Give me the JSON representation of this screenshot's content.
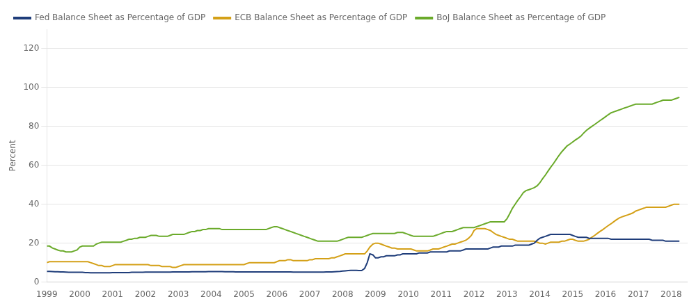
{
  "chart_data": {
    "type": "line",
    "ylabel": "Percent",
    "xlim": [
      1999,
      2018.5
    ],
    "xticks": [
      1999,
      2000,
      2001,
      2002,
      2003,
      2004,
      2005,
      2006,
      2007,
      2008,
      2009,
      2010,
      2011,
      2012,
      2013,
      2014,
      2015,
      2016,
      2017,
      2018
    ],
    "ylim": [
      0,
      130
    ],
    "yticks": [
      0,
      20,
      40,
      60,
      80,
      100,
      120
    ],
    "grid": "y",
    "legend": "upper left",
    "x": [
      1999.0,
      1999.08,
      1999.17,
      1999.25,
      1999.33,
      1999.42,
      1999.5,
      1999.58,
      1999.67,
      1999.75,
      1999.83,
      1999.92,
      2000.0,
      2000.08,
      2000.17,
      2000.25,
      2000.33,
      2000.42,
      2000.5,
      2000.58,
      2000.67,
      2000.75,
      2000.83,
      2000.92,
      2001.0,
      2001.08,
      2001.17,
      2001.25,
      2001.33,
      2001.42,
      2001.5,
      2001.58,
      2001.67,
      2001.75,
      2001.83,
      2001.92,
      2002.0,
      2002.08,
      2002.17,
      2002.25,
      2002.33,
      2002.42,
      2002.5,
      2002.58,
      2002.67,
      2002.75,
      2002.83,
      2002.92,
      2003.0,
      2003.08,
      2003.17,
      2003.25,
      2003.33,
      2003.42,
      2003.5,
      2003.58,
      2003.67,
      2003.75,
      2003.83,
      2003.92,
      2004.0,
      2004.08,
      2004.17,
      2004.25,
      2004.33,
      2004.42,
      2004.5,
      2004.58,
      2004.67,
      2004.75,
      2004.83,
      2004.92,
      2005.0,
      2005.08,
      2005.17,
      2005.25,
      2005.33,
      2005.42,
      2005.5,
      2005.58,
      2005.67,
      2005.75,
      2005.83,
      2005.92,
      2006.0,
      2006.08,
      2006.17,
      2006.25,
      2006.33,
      2006.42,
      2006.5,
      2006.58,
      2006.67,
      2006.75,
      2006.83,
      2006.92,
      2007.0,
      2007.08,
      2007.17,
      2007.25,
      2007.33,
      2007.42,
      2007.5,
      2007.58,
      2007.67,
      2007.75,
      2007.83,
      2007.92,
      2008.0,
      2008.08,
      2008.17,
      2008.25,
      2008.33,
      2008.42,
      2008.5,
      2008.58,
      2008.67,
      2008.75,
      2008.83,
      2008.92,
      2009.0,
      2009.08,
      2009.17,
      2009.25,
      2009.33,
      2009.42,
      2009.5,
      2009.58,
      2009.67,
      2009.75,
      2009.83,
      2009.92,
      2010.0,
      2010.08,
      2010.17,
      2010.25,
      2010.33,
      2010.42,
      2010.5,
      2010.58,
      2010.67,
      2010.75,
      2010.83,
      2010.92,
      2011.0,
      2011.08,
      2011.17,
      2011.25,
      2011.33,
      2011.42,
      2011.5,
      2011.58,
      2011.67,
      2011.75,
      2011.83,
      2011.92,
      2012.0,
      2012.08,
      2012.17,
      2012.25,
      2012.33,
      2012.42,
      2012.5,
      2012.58,
      2012.67,
      2012.75,
      2012.83,
      2012.92,
      2013.0,
      2013.08,
      2013.17,
      2013.25,
      2013.33,
      2013.42,
      2013.5,
      2013.58,
      2013.67,
      2013.75,
      2013.83,
      2013.92,
      2014.0,
      2014.08,
      2014.17,
      2014.25,
      2014.33,
      2014.42,
      2014.5,
      2014.58,
      2014.67,
      2014.75,
      2014.83,
      2014.92,
      2015.0,
      2015.08,
      2015.17,
      2015.25,
      2015.33,
      2015.42,
      2015.5,
      2015.58,
      2015.67,
      2015.75,
      2015.83,
      2015.92,
      2016.0,
      2016.08,
      2016.17,
      2016.25,
      2016.33,
      2016.42,
      2016.5,
      2016.58,
      2016.67,
      2016.75,
      2016.83,
      2016.92,
      2017.0,
      2017.08,
      2017.17,
      2017.25,
      2017.33,
      2017.42,
      2017.5,
      2017.58,
      2017.67,
      2017.75,
      2017.83,
      2017.92,
      2018.0,
      2018.08,
      2018.17,
      2018.25
    ],
    "series": [
      {
        "name": "Fed Balance Sheet as Percentage of GDP",
        "color": "#1f3d7a",
        "values": [
          5.5,
          5.5,
          5.4,
          5.3,
          5.3,
          5.2,
          5.2,
          5.1,
          5.0,
          5.0,
          5.0,
          5.0,
          5.0,
          5.0,
          4.9,
          4.9,
          4.8,
          4.8,
          4.8,
          4.8,
          4.8,
          4.8,
          4.8,
          4.8,
          4.9,
          4.9,
          4.9,
          4.9,
          4.9,
          4.9,
          4.9,
          5.0,
          5.0,
          5.0,
          5.0,
          5.0,
          5.1,
          5.1,
          5.1,
          5.1,
          5.1,
          5.1,
          5.1,
          5.1,
          5.1,
          5.1,
          5.2,
          5.2,
          5.2,
          5.2,
          5.2,
          5.2,
          5.2,
          5.3,
          5.3,
          5.3,
          5.3,
          5.3,
          5.3,
          5.4,
          5.4,
          5.4,
          5.4,
          5.4,
          5.4,
          5.3,
          5.3,
          5.3,
          5.3,
          5.2,
          5.2,
          5.2,
          5.2,
          5.2,
          5.2,
          5.2,
          5.2,
          5.2,
          5.2,
          5.2,
          5.2,
          5.2,
          5.2,
          5.2,
          5.2,
          5.2,
          5.2,
          5.2,
          5.2,
          5.2,
          5.1,
          5.1,
          5.1,
          5.1,
          5.1,
          5.1,
          5.1,
          5.1,
          5.1,
          5.1,
          5.1,
          5.1,
          5.2,
          5.2,
          5.2,
          5.3,
          5.4,
          5.5,
          5.7,
          5.8,
          5.9,
          6.0,
          6.0,
          6.0,
          5.9,
          5.9,
          7.0,
          10.0,
          14.5,
          14.0,
          12.5,
          12.5,
          13.0,
          13.0,
          13.5,
          13.5,
          13.5,
          13.5,
          14.0,
          14.0,
          14.5,
          14.5,
          14.5,
          14.5,
          14.5,
          14.5,
          15.0,
          15.0,
          15.0,
          15.0,
          15.5,
          15.5,
          15.5,
          15.5,
          15.5,
          15.5,
          15.5,
          16.0,
          16.0,
          16.0,
          16.0,
          16.0,
          16.5,
          17.0,
          17.0,
          17.0,
          17.0,
          17.0,
          17.0,
          17.0,
          17.0,
          17.0,
          17.5,
          18.0,
          18.0,
          18.0,
          18.5,
          18.5,
          18.5,
          18.5,
          18.5,
          19.0,
          19.0,
          19.0,
          19.0,
          19.0,
          19.0,
          19.5,
          20.0,
          21.5,
          22.5,
          23.0,
          23.5,
          24.0,
          24.5,
          24.5,
          24.5,
          24.5,
          24.5,
          24.5,
          24.5,
          24.5,
          24.0,
          23.5,
          23.0,
          23.0,
          23.0,
          23.0,
          22.5,
          22.5,
          22.5,
          22.5,
          22.5,
          22.5,
          22.5,
          22.5,
          22.0,
          22.0,
          22.0,
          22.0,
          22.0,
          22.0,
          22.0,
          22.0,
          22.0,
          22.0,
          22.0,
          22.0,
          22.0,
          22.0,
          22.0,
          21.5,
          21.5,
          21.5,
          21.5,
          21.5,
          21.0,
          21.0,
          21.0,
          21.0,
          21.0,
          21.0
        ]
      },
      {
        "name": "ECB Balance Sheet as Percentage of GDP",
        "color": "#d4a017",
        "values": [
          10.0,
          10.5,
          10.5,
          10.5,
          10.5,
          10.5,
          10.5,
          10.5,
          10.5,
          10.5,
          10.5,
          10.5,
          10.5,
          10.5,
          10.5,
          10.5,
          10.0,
          9.5,
          9.0,
          8.5,
          8.5,
          8.0,
          8.0,
          8.0,
          8.5,
          9.0,
          9.0,
          9.0,
          9.0,
          9.0,
          9.0,
          9.0,
          9.0,
          9.0,
          9.0,
          9.0,
          9.0,
          9.0,
          8.5,
          8.5,
          8.5,
          8.5,
          8.0,
          8.0,
          8.0,
          8.0,
          7.5,
          7.5,
          8.0,
          8.5,
          9.0,
          9.0,
          9.0,
          9.0,
          9.0,
          9.0,
          9.0,
          9.0,
          9.0,
          9.0,
          9.0,
          9.0,
          9.0,
          9.0,
          9.0,
          9.0,
          9.0,
          9.0,
          9.0,
          9.0,
          9.0,
          9.0,
          9.0,
          9.5,
          10.0,
          10.0,
          10.0,
          10.0,
          10.0,
          10.0,
          10.0,
          10.0,
          10.0,
          10.0,
          10.5,
          11.0,
          11.0,
          11.0,
          11.5,
          11.5,
          11.0,
          11.0,
          11.0,
          11.0,
          11.0,
          11.0,
          11.5,
          11.5,
          12.0,
          12.0,
          12.0,
          12.0,
          12.0,
          12.0,
          12.5,
          12.5,
          13.0,
          13.5,
          14.0,
          14.5,
          14.5,
          14.5,
          14.5,
          14.5,
          14.5,
          14.5,
          14.5,
          16.0,
          18.0,
          19.5,
          20.0,
          20.0,
          19.5,
          19.0,
          18.5,
          18.0,
          17.5,
          17.5,
          17.0,
          17.0,
          17.0,
          17.0,
          17.0,
          17.0,
          16.5,
          16.0,
          16.0,
          16.0,
          16.0,
          16.0,
          16.5,
          17.0,
          17.0,
          17.0,
          17.5,
          18.0,
          18.5,
          19.0,
          19.5,
          19.5,
          20.0,
          20.5,
          21.0,
          21.5,
          22.5,
          24.0,
          26.5,
          27.5,
          27.5,
          27.5,
          27.5,
          27.0,
          26.5,
          25.5,
          24.5,
          24.0,
          23.5,
          23.0,
          22.5,
          22.0,
          22.0,
          21.5,
          21.0,
          21.0,
          21.0,
          21.0,
          21.0,
          21.0,
          21.0,
          20.5,
          20.0,
          20.0,
          19.5,
          20.0,
          20.5,
          20.5,
          20.5,
          20.5,
          21.0,
          21.0,
          21.5,
          22.0,
          22.0,
          21.5,
          21.0,
          21.0,
          21.0,
          21.5,
          22.0,
          23.0,
          24.0,
          25.0,
          26.0,
          27.0,
          28.0,
          29.0,
          30.0,
          31.0,
          32.0,
          33.0,
          33.5,
          34.0,
          34.5,
          35.0,
          35.5,
          36.5,
          37.0,
          37.5,
          38.0,
          38.5,
          38.5,
          38.5,
          38.5,
          38.5,
          38.5,
          38.5,
          38.5,
          39.0,
          39.5,
          40.0,
          40.0,
          40.0
        ]
      },
      {
        "name": "BoJ Balance Sheet as Percentage of GDP",
        "color": "#6aaa2a",
        "values": [
          18.5,
          18.5,
          17.5,
          17.0,
          16.5,
          16.0,
          16.0,
          15.5,
          15.5,
          15.5,
          16.0,
          16.5,
          18.0,
          18.5,
          18.5,
          18.5,
          18.5,
          18.5,
          19.5,
          20.0,
          20.5,
          20.5,
          20.5,
          20.5,
          20.5,
          20.5,
          20.5,
          20.5,
          21.0,
          21.5,
          22.0,
          22.0,
          22.5,
          22.5,
          23.0,
          23.0,
          23.0,
          23.5,
          24.0,
          24.0,
          24.0,
          23.5,
          23.5,
          23.5,
          23.5,
          24.0,
          24.5,
          24.5,
          24.5,
          24.5,
          24.5,
          25.0,
          25.5,
          26.0,
          26.0,
          26.5,
          26.5,
          27.0,
          27.0,
          27.5,
          27.5,
          27.5,
          27.5,
          27.5,
          27.0,
          27.0,
          27.0,
          27.0,
          27.0,
          27.0,
          27.0,
          27.0,
          27.0,
          27.0,
          27.0,
          27.0,
          27.0,
          27.0,
          27.0,
          27.0,
          27.0,
          27.5,
          28.0,
          28.5,
          28.5,
          28.0,
          27.5,
          27.0,
          26.5,
          26.0,
          25.5,
          25.0,
          24.5,
          24.0,
          23.5,
          23.0,
          22.5,
          22.0,
          21.5,
          21.0,
          21.0,
          21.0,
          21.0,
          21.0,
          21.0,
          21.0,
          21.0,
          21.5,
          22.0,
          22.5,
          23.0,
          23.0,
          23.0,
          23.0,
          23.0,
          23.0,
          23.5,
          24.0,
          24.5,
          25.0,
          25.0,
          25.0,
          25.0,
          25.0,
          25.0,
          25.0,
          25.0,
          25.0,
          25.5,
          25.5,
          25.5,
          25.0,
          24.5,
          24.0,
          23.5,
          23.5,
          23.5,
          23.5,
          23.5,
          23.5,
          23.5,
          23.5,
          24.0,
          24.5,
          25.0,
          25.5,
          26.0,
          26.0,
          26.0,
          26.5,
          27.0,
          27.5,
          28.0,
          28.0,
          28.0,
          28.0,
          28.0,
          28.5,
          29.0,
          29.5,
          30.0,
          30.5,
          31.0,
          31.0,
          31.0,
          31.0,
          31.0,
          31.0,
          32.5,
          35.0,
          38.0,
          40.0,
          42.0,
          44.0,
          46.0,
          47.0,
          47.5,
          48.0,
          48.5,
          49.5,
          51.0,
          53.0,
          55.0,
          57.0,
          59.0,
          61.0,
          63.0,
          65.0,
          67.0,
          68.5,
          70.0,
          71.0,
          72.0,
          73.0,
          74.0,
          75.0,
          76.5,
          78.0,
          79.0,
          80.0,
          81.0,
          82.0,
          83.0,
          84.0,
          85.0,
          86.0,
          87.0,
          87.5,
          88.0,
          88.5,
          89.0,
          89.5,
          90.0,
          90.5,
          91.0,
          91.5,
          91.5,
          91.5,
          91.5,
          91.5,
          91.5,
          91.5,
          92.0,
          92.5,
          93.0,
          93.5,
          93.5,
          93.5,
          93.5,
          94.0,
          94.5,
          95.0
        ]
      }
    ]
  }
}
